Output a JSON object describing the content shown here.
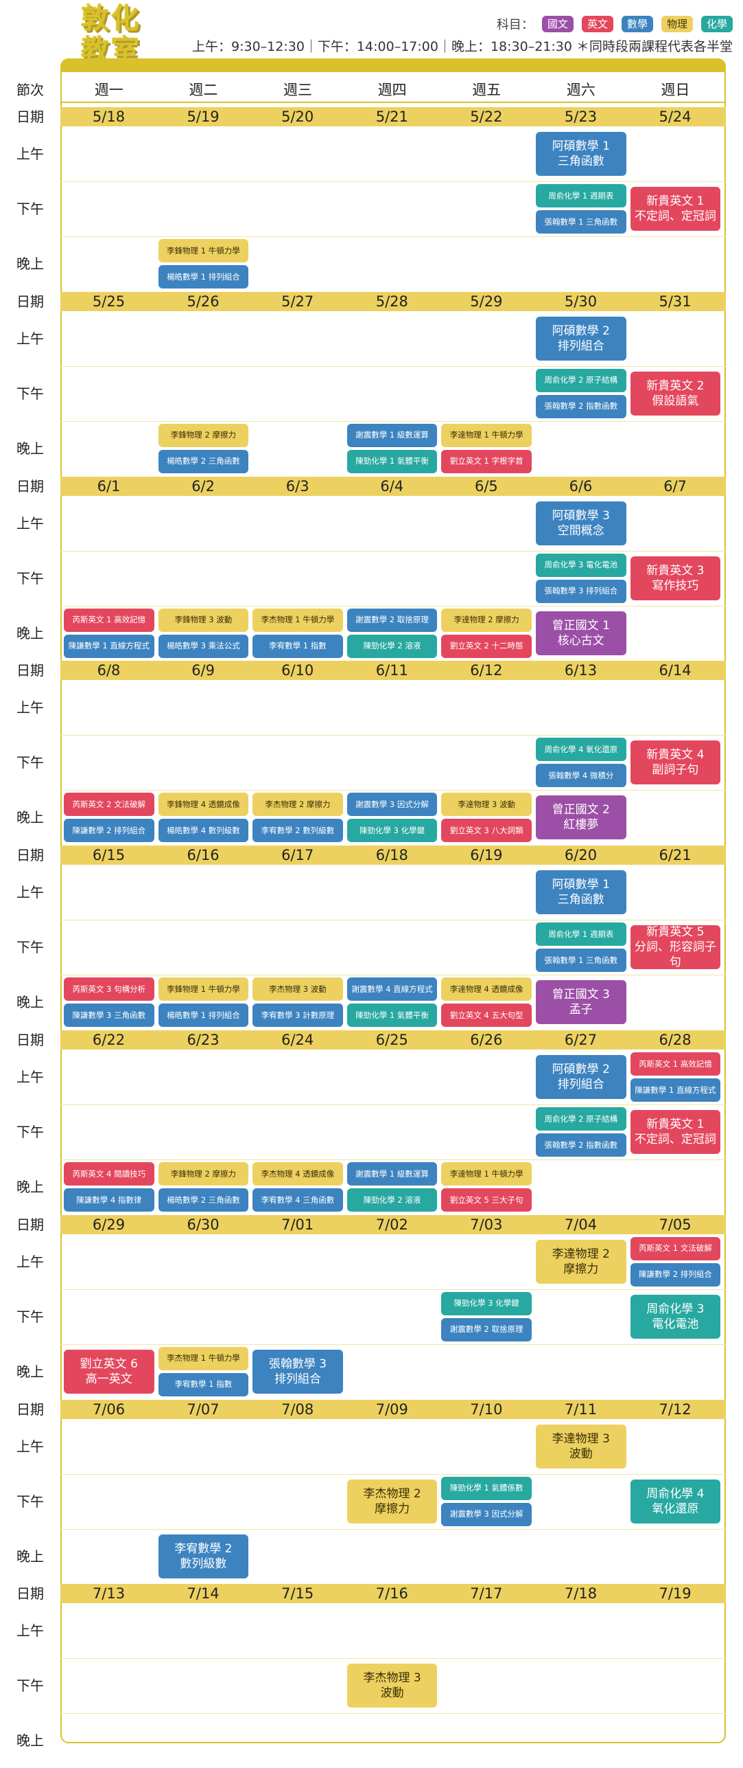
{
  "logo": [
    "敦化",
    "教室"
  ],
  "legend": {
    "label": "科目：",
    "items": [
      {
        "name": "國文",
        "color": "#9c4fa6"
      },
      {
        "name": "英文",
        "color": "#e3475e"
      },
      {
        "name": "數學",
        "color": "#3c83c0"
      },
      {
        "name": "物理",
        "color": "#ecd160"
      },
      {
        "name": "化學",
        "color": "#27a8a0"
      }
    ]
  },
  "hours": "上午：9:30–12:30｜下午：14:00–17:00｜晚上：18:30–21:30 ＊同時段兩課程代表各半堂",
  "header": {
    "period": "節次",
    "days": [
      "週一",
      "週二",
      "週三",
      "週四",
      "週五",
      "週六",
      "週日"
    ]
  },
  "slot_labels": {
    "date": "日期",
    "am": "上午",
    "pm": "下午",
    "eve": "晚上"
  },
  "colors": {
    "chinese": "#9c4fa6",
    "english": "#e3475e",
    "math": "#3c83c0",
    "physics": "#ecd160",
    "chemistry": "#27a8a0",
    "accent": "#d9c12b"
  },
  "weeks": [
    {
      "dates": [
        "5/18",
        "5/19",
        "5/20",
        "5/21",
        "5/22",
        "5/23",
        "5/24"
      ],
      "events": [
        {
          "day": 5,
          "slot": "am",
          "half": "full",
          "subject": "math",
          "text": "阿碩數學 1\n三角函數"
        },
        {
          "day": 5,
          "slot": "pm",
          "half": "top",
          "subject": "chemistry",
          "text": "周俞化學 1 週期表"
        },
        {
          "day": 5,
          "slot": "pm",
          "half": "bottom",
          "subject": "math",
          "text": "張翰數學 1 三角函數"
        },
        {
          "day": 6,
          "slot": "pm",
          "half": "full",
          "subject": "english",
          "text": "新貴英文 1\n不定詞、定冠詞"
        },
        {
          "day": 1,
          "slot": "eve",
          "half": "top",
          "subject": "physics",
          "text": "李鋒物理 1 牛頓力學"
        },
        {
          "day": 1,
          "slot": "eve",
          "half": "bottom",
          "subject": "math",
          "text": "楊皓數學 1 排列組合"
        }
      ]
    },
    {
      "dates": [
        "5/25",
        "5/26",
        "5/27",
        "5/28",
        "5/29",
        "5/30",
        "5/31"
      ],
      "events": [
        {
          "day": 5,
          "slot": "am",
          "half": "full",
          "subject": "math",
          "text": "阿碩數學 2\n排列組合"
        },
        {
          "day": 5,
          "slot": "pm",
          "half": "top",
          "subject": "chemistry",
          "text": "周俞化學 2 原子結構"
        },
        {
          "day": 5,
          "slot": "pm",
          "half": "bottom",
          "subject": "math",
          "text": "張翰數學 2 指數函數"
        },
        {
          "day": 6,
          "slot": "pm",
          "half": "full",
          "subject": "english",
          "text": "新貴英文 2\n假設語氣"
        },
        {
          "day": 1,
          "slot": "eve",
          "half": "top",
          "subject": "physics",
          "text": "李鋒物理 2 摩擦力"
        },
        {
          "day": 1,
          "slot": "eve",
          "half": "bottom",
          "subject": "math",
          "text": "楊皓數學 2 三角函數"
        },
        {
          "day": 3,
          "slot": "eve",
          "half": "top",
          "subject": "math",
          "text": "謝震數學 1 級數運算"
        },
        {
          "day": 3,
          "slot": "eve",
          "half": "bottom",
          "subject": "chemistry",
          "text": "陳勁化學 1 氣體平衡"
        },
        {
          "day": 4,
          "slot": "eve",
          "half": "top",
          "subject": "physics",
          "text": "李達物理 1 牛頓力學"
        },
        {
          "day": 4,
          "slot": "eve",
          "half": "bottom",
          "subject": "english",
          "text": "劉立英文 1 字根字首"
        }
      ]
    },
    {
      "dates": [
        "6/1",
        "6/2",
        "6/3",
        "6/4",
        "6/5",
        "6/6",
        "6/7"
      ],
      "events": [
        {
          "day": 5,
          "slot": "am",
          "half": "full",
          "subject": "math",
          "text": "阿碩數學 3\n空間概念"
        },
        {
          "day": 5,
          "slot": "pm",
          "half": "top",
          "subject": "chemistry",
          "text": "周俞化學 3 電化電池"
        },
        {
          "day": 5,
          "slot": "pm",
          "half": "bottom",
          "subject": "math",
          "text": "張翰數學 3 排列組合"
        },
        {
          "day": 6,
          "slot": "pm",
          "half": "full",
          "subject": "english",
          "text": "新貴英文 3\n寫作技巧"
        },
        {
          "day": 0,
          "slot": "eve",
          "half": "top",
          "subject": "english",
          "text": "芮斯英文 1 高效記憶"
        },
        {
          "day": 0,
          "slot": "eve",
          "half": "bottom",
          "subject": "math",
          "text": "陳謙數學 1 直線方程式"
        },
        {
          "day": 1,
          "slot": "eve",
          "half": "top",
          "subject": "physics",
          "text": "李鋒物理 3 波動"
        },
        {
          "day": 1,
          "slot": "eve",
          "half": "bottom",
          "subject": "math",
          "text": "楊皓數學 3 乘法公式"
        },
        {
          "day": 2,
          "slot": "eve",
          "half": "top",
          "subject": "physics",
          "text": "李杰物理 1 牛頓力學"
        },
        {
          "day": 2,
          "slot": "eve",
          "half": "bottom",
          "subject": "math",
          "text": "李宥數學 1 指數"
        },
        {
          "day": 3,
          "slot": "eve",
          "half": "top",
          "subject": "math",
          "text": "謝震數學 2 取捨原理"
        },
        {
          "day": 3,
          "slot": "eve",
          "half": "bottom",
          "subject": "chemistry",
          "text": "陳勁化學 2 溶液"
        },
        {
          "day": 4,
          "slot": "eve",
          "half": "top",
          "subject": "physics",
          "text": "李達物理 2 摩擦力"
        },
        {
          "day": 4,
          "slot": "eve",
          "half": "bottom",
          "subject": "english",
          "text": "劉立英文 2 十二時態"
        },
        {
          "day": 5,
          "slot": "eve",
          "half": "full",
          "subject": "chinese",
          "text": "曾正國文 1\n核心古文"
        }
      ]
    },
    {
      "dates": [
        "6/8",
        "6/9",
        "6/10",
        "6/11",
        "6/12",
        "6/13",
        "6/14"
      ],
      "events": [
        {
          "day": 5,
          "slot": "pm",
          "half": "top",
          "subject": "chemistry",
          "text": "周俞化學 4 氧化還原"
        },
        {
          "day": 5,
          "slot": "pm",
          "half": "bottom",
          "subject": "math",
          "text": "張翰數學 4 微積分"
        },
        {
          "day": 6,
          "slot": "pm",
          "half": "full",
          "subject": "english",
          "text": "新貴英文 4\n副詞子句"
        },
        {
          "day": 0,
          "slot": "eve",
          "half": "top",
          "subject": "english",
          "text": "芮斯英文 2 文法破解"
        },
        {
          "day": 0,
          "slot": "eve",
          "half": "bottom",
          "subject": "math",
          "text": "陳謙數學 2 排列組合"
        },
        {
          "day": 1,
          "slot": "eve",
          "half": "top",
          "subject": "physics",
          "text": "李鋒物理 4 透鏡成像"
        },
        {
          "day": 1,
          "slot": "eve",
          "half": "bottom",
          "subject": "math",
          "text": "楊皓數學 4 數列級數"
        },
        {
          "day": 2,
          "slot": "eve",
          "half": "top",
          "subject": "physics",
          "text": "李杰物理 2 摩擦力"
        },
        {
          "day": 2,
          "slot": "eve",
          "half": "bottom",
          "subject": "math",
          "text": "李宥數學 2 數列級數"
        },
        {
          "day": 3,
          "slot": "eve",
          "half": "top",
          "subject": "math",
          "text": "謝震數學 3 因式分解"
        },
        {
          "day": 3,
          "slot": "eve",
          "half": "bottom",
          "subject": "chemistry",
          "text": "陳勁化學 3 化學鍵"
        },
        {
          "day": 4,
          "slot": "eve",
          "half": "top",
          "subject": "physics",
          "text": "李達物理 3 波動"
        },
        {
          "day": 4,
          "slot": "eve",
          "half": "bottom",
          "subject": "english",
          "text": "劉立英文 3 八大詞類"
        },
        {
          "day": 5,
          "slot": "eve",
          "half": "full",
          "subject": "chinese",
          "text": "曾正國文 2\n紅樓夢"
        }
      ]
    },
    {
      "dates": [
        "6/15",
        "6/16",
        "6/17",
        "6/18",
        "6/19",
        "6/20",
        "6/21"
      ],
      "events": [
        {
          "day": 5,
          "slot": "am",
          "half": "full",
          "subject": "math",
          "text": "阿碩數學 1\n三角函數"
        },
        {
          "day": 5,
          "slot": "pm",
          "half": "top",
          "subject": "chemistry",
          "text": "周俞化學 1 週期表"
        },
        {
          "day": 5,
          "slot": "pm",
          "half": "bottom",
          "subject": "math",
          "text": "張翰數學 1 三角函數"
        },
        {
          "day": 6,
          "slot": "pm",
          "half": "full",
          "subject": "english",
          "text": "新貴英文 5\n分詞、形容詞子句"
        },
        {
          "day": 0,
          "slot": "eve",
          "half": "top",
          "subject": "english",
          "text": "芮斯英文 3 句構分析"
        },
        {
          "day": 0,
          "slot": "eve",
          "half": "bottom",
          "subject": "math",
          "text": "陳謙數學 3 三角函數"
        },
        {
          "day": 1,
          "slot": "eve",
          "half": "top",
          "subject": "physics",
          "text": "李鋒物理 1 牛頓力學"
        },
        {
          "day": 1,
          "slot": "eve",
          "half": "bottom",
          "subject": "math",
          "text": "楊皓數學 1 排列組合"
        },
        {
          "day": 2,
          "slot": "eve",
          "half": "top",
          "subject": "physics",
          "text": "李杰物理 3 波動"
        },
        {
          "day": 2,
          "slot": "eve",
          "half": "bottom",
          "subject": "math",
          "text": "李宥數學 3 計數原理"
        },
        {
          "day": 3,
          "slot": "eve",
          "half": "top",
          "subject": "math",
          "text": "謝震數學 4 直線方程式"
        },
        {
          "day": 3,
          "slot": "eve",
          "half": "bottom",
          "subject": "chemistry",
          "text": "陳勁化學 1 氣體平衡"
        },
        {
          "day": 4,
          "slot": "eve",
          "half": "top",
          "subject": "physics",
          "text": "李達物理 4 透鏡成像"
        },
        {
          "day": 4,
          "slot": "eve",
          "half": "bottom",
          "subject": "english",
          "text": "劉立英文 4 五大句型"
        },
        {
          "day": 5,
          "slot": "eve",
          "half": "full",
          "subject": "chinese",
          "text": "曾正國文 3\n孟子"
        }
      ]
    },
    {
      "dates": [
        "6/22",
        "6/23",
        "6/24",
        "6/25",
        "6/26",
        "6/27",
        "6/28"
      ],
      "events": [
        {
          "day": 5,
          "slot": "am",
          "half": "full",
          "subject": "math",
          "text": "阿碩數學 2\n排列組合"
        },
        {
          "day": 6,
          "slot": "am",
          "half": "top",
          "subject": "english",
          "text": "芮斯英文 1 高效記憶"
        },
        {
          "day": 6,
          "slot": "am",
          "half": "bottom",
          "subject": "math",
          "text": "陳謙數學 1 直線方程式"
        },
        {
          "day": 5,
          "slot": "pm",
          "half": "top",
          "subject": "chemistry",
          "text": "周俞化學 2 原子結構"
        },
        {
          "day": 5,
          "slot": "pm",
          "half": "bottom",
          "subject": "math",
          "text": "張翰數學 2 指數函數"
        },
        {
          "day": 6,
          "slot": "pm",
          "half": "full",
          "subject": "english",
          "text": "新貴英文 1\n不定詞、定冠詞"
        },
        {
          "day": 0,
          "slot": "eve",
          "half": "top",
          "subject": "english",
          "text": "芮斯英文 4 閱讀技巧"
        },
        {
          "day": 0,
          "slot": "eve",
          "half": "bottom",
          "subject": "math",
          "text": "陳謙數學 4 指數律"
        },
        {
          "day": 1,
          "slot": "eve",
          "half": "top",
          "subject": "physics",
          "text": "李鋒物理 2 摩擦力"
        },
        {
          "day": 1,
          "slot": "eve",
          "half": "bottom",
          "subject": "math",
          "text": "楊皓數學 2 三角函數"
        },
        {
          "day": 2,
          "slot": "eve",
          "half": "top",
          "subject": "physics",
          "text": "李杰物理 4 透鏡成像"
        },
        {
          "day": 2,
          "slot": "eve",
          "half": "bottom",
          "subject": "math",
          "text": "李宥數學 4 三角函數"
        },
        {
          "day": 3,
          "slot": "eve",
          "half": "top",
          "subject": "math",
          "text": "謝震數學 1 級數運算"
        },
        {
          "day": 3,
          "slot": "eve",
          "half": "bottom",
          "subject": "chemistry",
          "text": "陳勁化學 2 溶液"
        },
        {
          "day": 4,
          "slot": "eve",
          "half": "top",
          "subject": "physics",
          "text": "李達物理 1 牛頓力學"
        },
        {
          "day": 4,
          "slot": "eve",
          "half": "bottom",
          "subject": "english",
          "text": "劉立英文 5 三大子句"
        }
      ]
    },
    {
      "dates": [
        "6/29",
        "6/30",
        "7/01",
        "7/02",
        "7/03",
        "7/04",
        "7/05"
      ],
      "events": [
        {
          "day": 5,
          "slot": "am",
          "half": "full",
          "subject": "physics",
          "text": "李達物理 2\n摩擦力"
        },
        {
          "day": 6,
          "slot": "am",
          "half": "top",
          "subject": "english",
          "text": "芮斯英文 1 文法破解"
        },
        {
          "day": 6,
          "slot": "am",
          "half": "bottom",
          "subject": "math",
          "text": "陳謙數學 2 排列組合"
        },
        {
          "day": 4,
          "slot": "pm",
          "half": "top",
          "subject": "chemistry",
          "text": "陳勁化學 3 化學鍵"
        },
        {
          "day": 4,
          "slot": "pm",
          "half": "bottom",
          "subject": "math",
          "text": "謝震數學 2 取捨原理"
        },
        {
          "day": 6,
          "slot": "pm",
          "half": "full",
          "subject": "chemistry",
          "text": "周俞化學 3\n電化電池"
        },
        {
          "day": 0,
          "slot": "eve",
          "half": "full",
          "subject": "english",
          "text": "劉立英文 6\n高一英文"
        },
        {
          "day": 1,
          "slot": "eve",
          "half": "top",
          "subject": "physics",
          "text": "李杰物理 1 牛頓力學"
        },
        {
          "day": 1,
          "slot": "eve",
          "half": "bottom",
          "subject": "math",
          "text": "李宥數學 1 指數"
        },
        {
          "day": 2,
          "slot": "eve",
          "half": "full",
          "subject": "math",
          "text": "張翰數學 3\n排列組合"
        }
      ]
    },
    {
      "dates": [
        "7/06",
        "7/07",
        "7/08",
        "7/09",
        "7/10",
        "7/11",
        "7/12"
      ],
      "events": [
        {
          "day": 5,
          "slot": "am",
          "half": "full",
          "subject": "physics",
          "text": "李達物理 3\n波動"
        },
        {
          "day": 3,
          "slot": "pm",
          "half": "full",
          "subject": "physics",
          "text": "李杰物理 2\n摩擦力"
        },
        {
          "day": 4,
          "slot": "pm",
          "half": "top",
          "subject": "chemistry",
          "text": "陳勁化學 1 氣體係數"
        },
        {
          "day": 4,
          "slot": "pm",
          "half": "bottom",
          "subject": "math",
          "text": "謝震數學 3 因式分解"
        },
        {
          "day": 6,
          "slot": "pm",
          "half": "full",
          "subject": "chemistry",
          "text": "周俞化學 4\n氧化還原"
        },
        {
          "day": 1,
          "slot": "eve",
          "half": "full",
          "subject": "math",
          "text": "李宥數學 2\n數列級數"
        }
      ]
    },
    {
      "dates": [
        "7/13",
        "7/14",
        "7/15",
        "7/16",
        "7/17",
        "7/18",
        "7/19"
      ],
      "events": [
        {
          "day": 3,
          "slot": "pm",
          "half": "full",
          "subject": "physics",
          "text": "李杰物理 3\n波動"
        }
      ]
    }
  ]
}
